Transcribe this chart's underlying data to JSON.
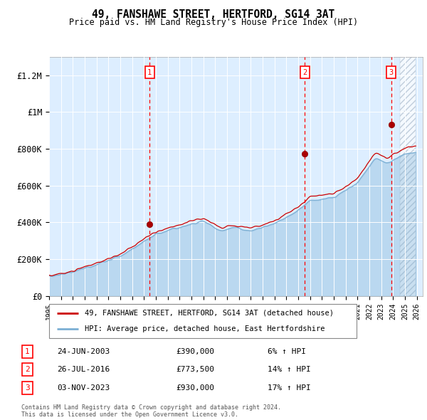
{
  "title": "49, FANSHAWE STREET, HERTFORD, SG14 3AT",
  "subtitle": "Price paid vs. HM Land Registry's House Price Index (HPI)",
  "ylim": [
    0,
    1300000
  ],
  "yticks": [
    0,
    200000,
    400000,
    600000,
    800000,
    1000000,
    1200000
  ],
  "ytick_labels": [
    "£0",
    "£200K",
    "£400K",
    "£600K",
    "£800K",
    "£1M",
    "£1.2M"
  ],
  "xlim_start": 1995.0,
  "xlim_end": 2026.5,
  "background_color": "#ffffff",
  "plot_bg_color": "#ddeeff",
  "grid_color": "#cccccc",
  "line_color_red": "#cc0000",
  "line_color_blue": "#7bafd4",
  "fill_blue_alpha": 0.35,
  "purchase_dates": [
    2003.48,
    2016.57,
    2023.84
  ],
  "purchase_prices": [
    390000,
    773500,
    930000
  ],
  "purchase_labels": [
    "1",
    "2",
    "3"
  ],
  "transaction_info": [
    {
      "label": "1",
      "date": "24-JUN-2003",
      "price": "£390,000",
      "hpi": "6% ↑ HPI"
    },
    {
      "label": "2",
      "date": "26-JUL-2016",
      "price": "£773,500",
      "hpi": "14% ↑ HPI"
    },
    {
      "label": "3",
      "date": "03-NOV-2023",
      "price": "£930,000",
      "hpi": "17% ↑ HPI"
    }
  ],
  "legend_line1": "49, FANSHAWE STREET, HERTFORD, SG14 3AT (detached house)",
  "legend_line2": "HPI: Average price, detached house, East Hertfordshire",
  "footer": "Contains HM Land Registry data © Crown copyright and database right 2024.\nThis data is licensed under the Open Government Licence v3.0."
}
